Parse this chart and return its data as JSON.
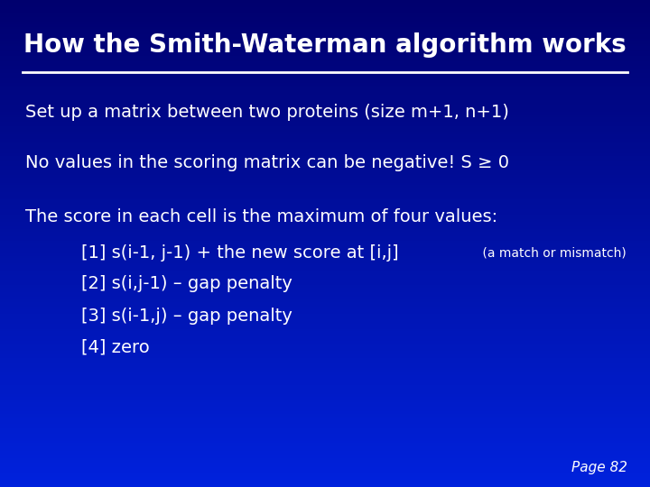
{
  "title": "How the Smith-Waterman algorithm works",
  "bg_color": "#0000aa",
  "text_color": "#ffffff",
  "title_fontsize": 20,
  "body_fontsize": 14,
  "small_fontsize": 10,
  "page_label": "Page 82",
  "line1": "Set up a matrix between two proteins (size m+1, n+1)",
  "line2_main": "No values in the scoring matrix can be negative! S ≥ 0",
  "line3_intro": "The score in each cell is the maximum of four values:",
  "bullet1_main": "[1] s(i-1, j-1) + the new score at [i,j]",
  "bullet1_small": " (a match or mismatch)",
  "bullet2": "[2] s(i,j-1) – gap penalty",
  "bullet3": "[3] s(i-1,j) – gap penalty",
  "bullet4": "[4] zero"
}
